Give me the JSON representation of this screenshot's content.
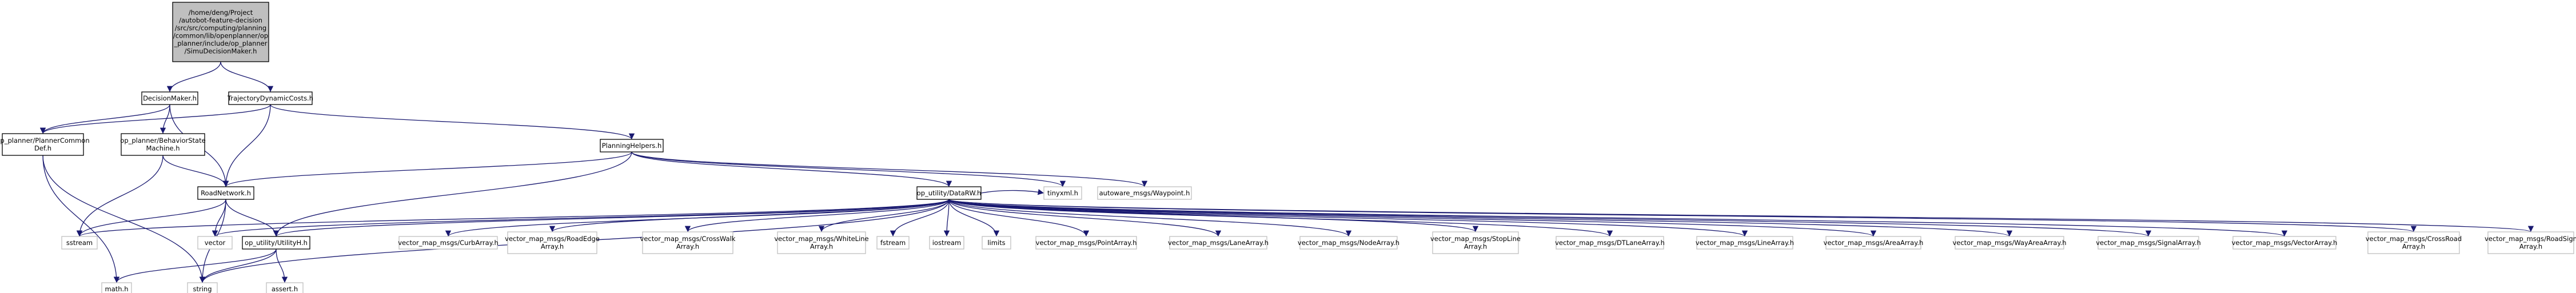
{
  "colors": {
    "edge": "#191970",
    "root_fill": "#bfbfbf",
    "node_border": "#000000",
    "external_border": "#bfbfbf"
  },
  "nodes": [
    {
      "id": "root",
      "kind": "root",
      "lines": [
        "/home/deng/Project",
        "/autobot-feature-decision",
        "/src/src/computing/planning",
        "/common/lib/openplanner/op",
        "_planner/include/op_planner",
        "/SimuDecisionMaker.h"
      ]
    },
    {
      "id": "decisionmaker",
      "kind": "main",
      "lines": [
        "DecisionMaker.h"
      ]
    },
    {
      "id": "trajectorydynamiccosts",
      "kind": "main",
      "lines": [
        "TrajectoryDynamicCosts.h"
      ]
    },
    {
      "id": "plannercommondef",
      "kind": "main",
      "lines": [
        "op_planner/PlannerCommon",
        "Def.h"
      ]
    },
    {
      "id": "behaviorstatemachine",
      "kind": "main",
      "lines": [
        "op_planner/BehaviorState",
        "Machine.h"
      ]
    },
    {
      "id": "planninghelpers",
      "kind": "main",
      "lines": [
        "PlanningHelpers.h"
      ]
    },
    {
      "id": "roadnetwork",
      "kind": "main",
      "lines": [
        "RoadNetwork.h"
      ]
    },
    {
      "id": "datarw",
      "kind": "main",
      "lines": [
        "op_utility/DataRW.h"
      ]
    },
    {
      "id": "utilityh",
      "kind": "main",
      "lines": [
        "op_utility/UtilityH.h"
      ]
    },
    {
      "id": "tinyxml",
      "kind": "ext",
      "lines": [
        "tinyxml.h"
      ]
    },
    {
      "id": "waypoint",
      "kind": "ext",
      "lines": [
        "autoware_msgs/Waypoint.h"
      ]
    },
    {
      "id": "sstream",
      "kind": "ext",
      "lines": [
        "sstream"
      ]
    },
    {
      "id": "vector",
      "kind": "ext",
      "lines": [
        "vector"
      ]
    },
    {
      "id": "mathh",
      "kind": "ext",
      "lines": [
        "math.h"
      ]
    },
    {
      "id": "string",
      "kind": "ext",
      "lines": [
        "string"
      ]
    },
    {
      "id": "asserth",
      "kind": "ext",
      "lines": [
        "assert.h"
      ]
    },
    {
      "id": "curbarray",
      "kind": "ext",
      "lines": [
        "vector_map_msgs/CurbArray.h"
      ]
    },
    {
      "id": "roadedgearray",
      "kind": "ext",
      "lines": [
        "vector_map_msgs/RoadEdge",
        "Array.h"
      ]
    },
    {
      "id": "crosswalkarray",
      "kind": "ext",
      "lines": [
        "vector_map_msgs/CrossWalk",
        "Array.h"
      ]
    },
    {
      "id": "whitelinearray",
      "kind": "ext",
      "lines": [
        "vector_map_msgs/WhiteLine",
        "Array.h"
      ]
    },
    {
      "id": "fstream",
      "kind": "ext",
      "lines": [
        "fstream"
      ]
    },
    {
      "id": "iostream",
      "kind": "ext",
      "lines": [
        "iostream"
      ]
    },
    {
      "id": "limits",
      "kind": "ext",
      "lines": [
        "limits"
      ]
    },
    {
      "id": "pointarray",
      "kind": "ext",
      "lines": [
        "vector_map_msgs/PointArray.h"
      ]
    },
    {
      "id": "lanearray",
      "kind": "ext",
      "lines": [
        "vector_map_msgs/LaneArray.h"
      ]
    },
    {
      "id": "nodearray",
      "kind": "ext",
      "lines": [
        "vector_map_msgs/NodeArray.h"
      ]
    },
    {
      "id": "stoplinearray",
      "kind": "ext",
      "lines": [
        "vector_map_msgs/StopLine",
        "Array.h"
      ]
    },
    {
      "id": "dtlanearray",
      "kind": "ext",
      "lines": [
        "vector_map_msgs/DTLaneArray.h"
      ]
    },
    {
      "id": "linearray",
      "kind": "ext",
      "lines": [
        "vector_map_msgs/LineArray.h"
      ]
    },
    {
      "id": "areaarray",
      "kind": "ext",
      "lines": [
        "vector_map_msgs/AreaArray.h"
      ]
    },
    {
      "id": "wayareaarray",
      "kind": "ext",
      "lines": [
        "vector_map_msgs/WayAreaArray.h"
      ]
    },
    {
      "id": "signalarray",
      "kind": "ext",
      "lines": [
        "vector_map_msgs/SignalArray.h"
      ]
    },
    {
      "id": "vectorarray",
      "kind": "ext",
      "lines": [
        "vector_map_msgs/VectorArray.h"
      ]
    },
    {
      "id": "crossroadarray",
      "kind": "ext",
      "lines": [
        "vector_map_msgs/CrossRoad",
        "Array.h"
      ]
    },
    {
      "id": "roadsignarray",
      "kind": "ext",
      "lines": [
        "vector_map_msgs/RoadSign",
        "Array.h"
      ]
    }
  ],
  "edges": [
    [
      "root",
      "decisionmaker"
    ],
    [
      "root",
      "trajectorydynamiccosts"
    ],
    [
      "decisionmaker",
      "plannercommondef"
    ],
    [
      "decisionmaker",
      "behaviorstatemachine"
    ],
    [
      "decisionmaker",
      "roadnetwork"
    ],
    [
      "trajectorydynamiccosts",
      "planninghelpers"
    ],
    [
      "trajectorydynamiccosts",
      "plannercommondef"
    ],
    [
      "trajectorydynamiccosts",
      "roadnetwork"
    ],
    [
      "plannercommondef",
      "mathh"
    ],
    [
      "plannercommondef",
      "string"
    ],
    [
      "behaviorstatemachine",
      "roadnetwork"
    ],
    [
      "behaviorstatemachine",
      "sstream"
    ],
    [
      "planninghelpers",
      "roadnetwork"
    ],
    [
      "planninghelpers",
      "datarw"
    ],
    [
      "planninghelpers",
      "tinyxml"
    ],
    [
      "planninghelpers",
      "waypoint"
    ],
    [
      "planninghelpers",
      "utilityh"
    ],
    [
      "roadnetwork",
      "sstream"
    ],
    [
      "roadnetwork",
      "vector"
    ],
    [
      "roadnetwork",
      "string"
    ],
    [
      "roadnetwork",
      "utilityh"
    ],
    [
      "utilityh",
      "mathh"
    ],
    [
      "utilityh",
      "string"
    ],
    [
      "utilityh",
      "asserth"
    ],
    [
      "datarw",
      "tinyxml"
    ],
    [
      "datarw",
      "sstream"
    ],
    [
      "datarw",
      "vector"
    ],
    [
      "datarw",
      "string"
    ],
    [
      "datarw",
      "utilityh"
    ],
    [
      "datarw",
      "curbarray"
    ],
    [
      "datarw",
      "roadedgearray"
    ],
    [
      "datarw",
      "crosswalkarray"
    ],
    [
      "datarw",
      "whitelinearray"
    ],
    [
      "datarw",
      "fstream"
    ],
    [
      "datarw",
      "iostream"
    ],
    [
      "datarw",
      "limits"
    ],
    [
      "datarw",
      "pointarray"
    ],
    [
      "datarw",
      "lanearray"
    ],
    [
      "datarw",
      "nodearray"
    ],
    [
      "datarw",
      "stoplinearray"
    ],
    [
      "datarw",
      "dtlanearray"
    ],
    [
      "datarw",
      "linearray"
    ],
    [
      "datarw",
      "areaarray"
    ],
    [
      "datarw",
      "wayareaarray"
    ],
    [
      "datarw",
      "signalarray"
    ],
    [
      "datarw",
      "vectorarray"
    ],
    [
      "datarw",
      "crossroadarray"
    ],
    [
      "datarw",
      "roadsignarray"
    ]
  ]
}
